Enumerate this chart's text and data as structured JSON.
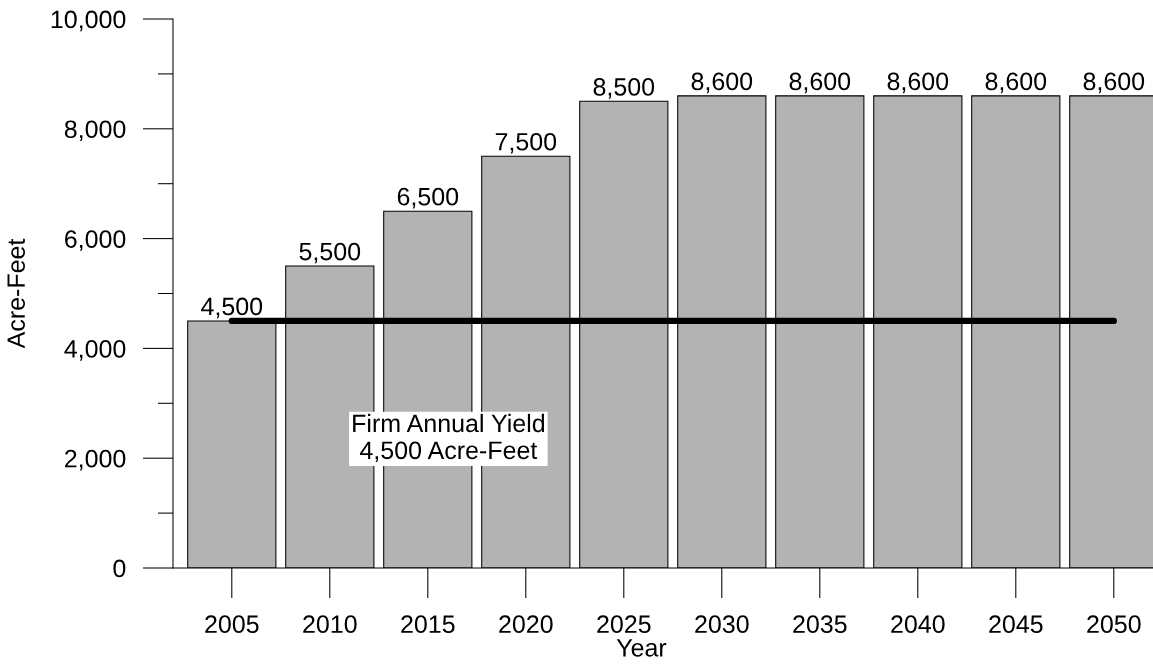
{
  "chart_data": {
    "type": "bar",
    "xlabel": "Year",
    "ylabel": "Acre-Feet",
    "categories": [
      "2005",
      "2010",
      "2015",
      "2020",
      "2025",
      "2030",
      "2035",
      "2040",
      "2045",
      "2050"
    ],
    "series": [
      {
        "color": "#b3b3b3",
        "values": [
          4500,
          5500,
          6500,
          7500,
          8500,
          8600,
          8600,
          8600,
          8600,
          8600
        ],
        "value_labels": [
          "4,500",
          "5,500",
          "6,500",
          "7,500",
          "8,500",
          "8,600",
          "8,600",
          "8,600",
          "8,600",
          "8,600"
        ]
      },
      {
        "type": "line",
        "color": "#000000",
        "values": [
          4500,
          4500,
          4500,
          4500,
          4500,
          4500,
          4500,
          4500,
          4500,
          4500
        ]
      }
    ],
    "ylim": [
      0,
      10000
    ],
    "yticks": [
      0,
      {
        "value": 1000,
        "label": null
      },
      {
        "value": 2000,
        "label": "2,000"
      },
      {
        "value": 3000,
        "label": null
      },
      {
        "value": 4000,
        "label": "4,000"
      },
      {
        "value": 5000,
        "label": null
      },
      {
        "value": 6000,
        "label": "6,000"
      },
      {
        "value": 7000,
        "label": null
      },
      {
        "value": 8000,
        "label": "8,000"
      },
      {
        "value": 9000,
        "label": null
      },
      {
        "value": 10000,
        "label": "10,000"
      }
    ],
    "annotations": [
      "Firm Annual Yield\n4,500 Acre-Feet"
    ]
  }
}
